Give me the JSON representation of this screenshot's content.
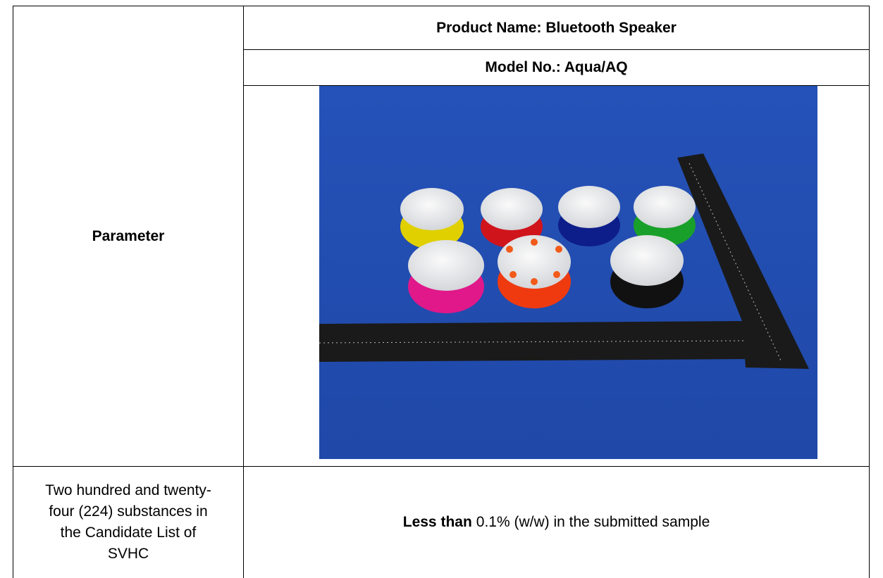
{
  "table": {
    "header": {
      "product_name": "Product Name: Bluetooth Speaker",
      "model_no": "Model No.: Aqua/AQ"
    },
    "parameter_label": "Parameter",
    "rows": [
      {
        "substance": "Two hundred and twenty-four (224) substances in the Candidate List of SVHC",
        "result_bold": "Less than",
        "result_rest": "0.1% (w/w) in the submitted sample"
      }
    ]
  }
}
